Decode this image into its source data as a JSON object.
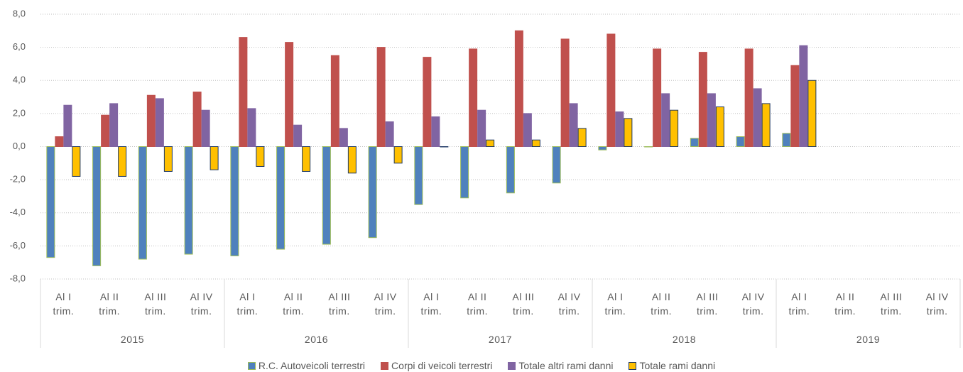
{
  "chart_data": {
    "type": "bar",
    "categories": [
      "Al I trim.",
      "Al II trim.",
      "Al III trim.",
      "Al IV trim.",
      "Al I trim.",
      "Al II trim.",
      "Al III trim.",
      "Al IV trim.",
      "Al I trim.",
      "Al II trim.",
      "Al III trim.",
      "Al IV trim.",
      "Al I trim.",
      "Al II trim.",
      "Al III trim.",
      "Al IV trim.",
      "Al I trim.",
      "Al II trim.",
      "Al III trim.",
      "Al IV trim."
    ],
    "years": [
      "2015",
      "2016",
      "2017",
      "2018",
      "2019"
    ],
    "series": [
      {
        "name": "R.C. Autoveicoli terrestri",
        "color": "#4f81bd",
        "border": "#9bbb59",
        "values": [
          -6.7,
          -7.2,
          -6.8,
          -6.5,
          -6.6,
          -6.2,
          -5.9,
          -5.5,
          -3.5,
          -3.1,
          -2.8,
          -2.2,
          -0.2,
          0.0,
          0.5,
          0.6,
          0.8,
          null,
          null,
          null
        ]
      },
      {
        "name": "Corpi di veicoli terrestri",
        "color": "#c0504d",
        "border": "#c0504d",
        "values": [
          0.6,
          1.9,
          3.1,
          3.3,
          6.6,
          6.3,
          5.5,
          6.0,
          5.4,
          5.9,
          7.0,
          6.5,
          6.8,
          5.9,
          5.7,
          5.9,
          4.9,
          null,
          null,
          null
        ]
      },
      {
        "name": "Totale altri rami danni",
        "color": "#8064a2",
        "border": "#8064a2",
        "values": [
          2.5,
          2.6,
          2.9,
          2.2,
          2.3,
          1.3,
          1.1,
          1.5,
          1.8,
          2.2,
          2.0,
          2.6,
          2.1,
          3.2,
          3.2,
          3.5,
          6.1,
          null,
          null,
          null
        ]
      },
      {
        "name": "Totale rami danni",
        "color": "#ffc000",
        "border": "#1f3864",
        "values": [
          -1.8,
          -1.8,
          -1.5,
          -1.4,
          -1.2,
          -1.5,
          -1.6,
          -1.0,
          0.0,
          0.4,
          0.4,
          1.1,
          1.7,
          2.2,
          2.4,
          2.6,
          4.0,
          null,
          null,
          null
        ]
      }
    ],
    "ylim": [
      -8,
      8
    ],
    "yticks": [
      {
        "value": -8,
        "label": "-8,0"
      },
      {
        "value": -6,
        "label": "-6,0"
      },
      {
        "value": -4,
        "label": "-4,0"
      },
      {
        "value": -2,
        "label": "-2,0"
      },
      {
        "value": 0,
        "label": "0,0"
      },
      {
        "value": 2,
        "label": "2,0"
      },
      {
        "value": 4,
        "label": "4,0"
      },
      {
        "value": 6,
        "label": "6,0"
      },
      {
        "value": 8,
        "label": "8,0"
      }
    ],
    "grid": true,
    "legend": "bottom"
  }
}
